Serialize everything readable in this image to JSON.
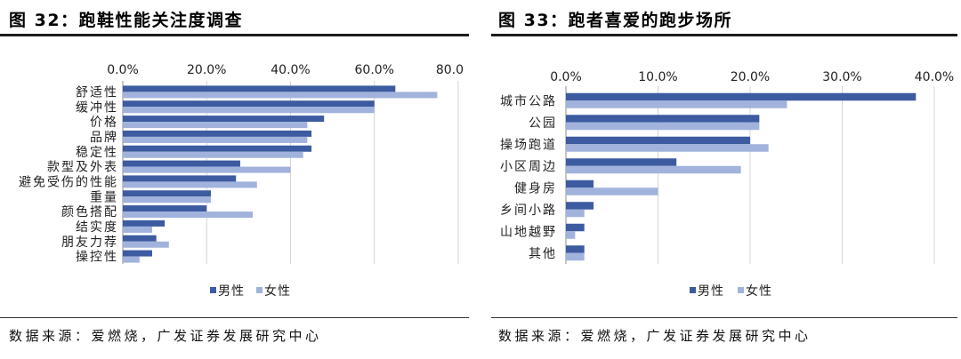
{
  "chart_data": [
    {
      "type": "bar",
      "orientation": "horizontal",
      "title": "图 32：跑鞋性能关注度调查",
      "categories": [
        "舒适性",
        "缓冲性",
        "价格",
        "品牌",
        "稳定性",
        "款型及外表",
        "避免受伤的性能",
        "重量",
        "颜色搭配",
        "结实度",
        "朋友力荐",
        "操控性"
      ],
      "series": [
        {
          "name": "男性",
          "color": "#3c5ba0",
          "values": [
            65,
            60,
            48,
            45,
            45,
            28,
            27,
            21,
            20,
            10,
            8,
            7
          ]
        },
        {
          "name": "女性",
          "color": "#a1b3dc",
          "values": [
            75,
            60,
            44,
            44,
            43,
            40,
            32,
            21,
            31,
            7,
            11,
            4
          ]
        }
      ],
      "xlim": [
        0,
        80
      ],
      "ticks": [
        0,
        20,
        40,
        60,
        80
      ],
      "tick_labels": [
        "0.0%",
        "20.0%",
        "40.0%",
        "60.0%",
        "80.0"
      ],
      "value_axis_position": "top",
      "grid": true,
      "legend": "bottom",
      "source": "数据来源：爱燃烧，广发证券发展研究中心"
    },
    {
      "type": "bar",
      "orientation": "horizontal",
      "title": "图 33：跑者喜爱的跑步场所",
      "categories": [
        "城市公路",
        "公园",
        "操场跑道",
        "小区周边",
        "健身房",
        "乡间小路",
        "山地越野",
        "其他"
      ],
      "series": [
        {
          "name": "男性",
          "color": "#3c5ba0",
          "values": [
            38,
            21,
            20,
            12,
            3,
            3,
            2,
            2
          ]
        },
        {
          "name": "女性",
          "color": "#a1b3dc",
          "values": [
            24,
            21,
            22,
            19,
            10,
            2,
            1,
            2
          ]
        }
      ],
      "xlim": [
        0,
        40
      ],
      "ticks": [
        0,
        10,
        20,
        30,
        40
      ],
      "tick_labels": [
        "0.0%",
        "10.0%",
        "20.0%",
        "30.0%",
        "40.0%"
      ],
      "value_axis_position": "top",
      "grid": true,
      "legend": "bottom",
      "source": "数据来源：爱燃烧，广发证券发展研究中心"
    }
  ]
}
